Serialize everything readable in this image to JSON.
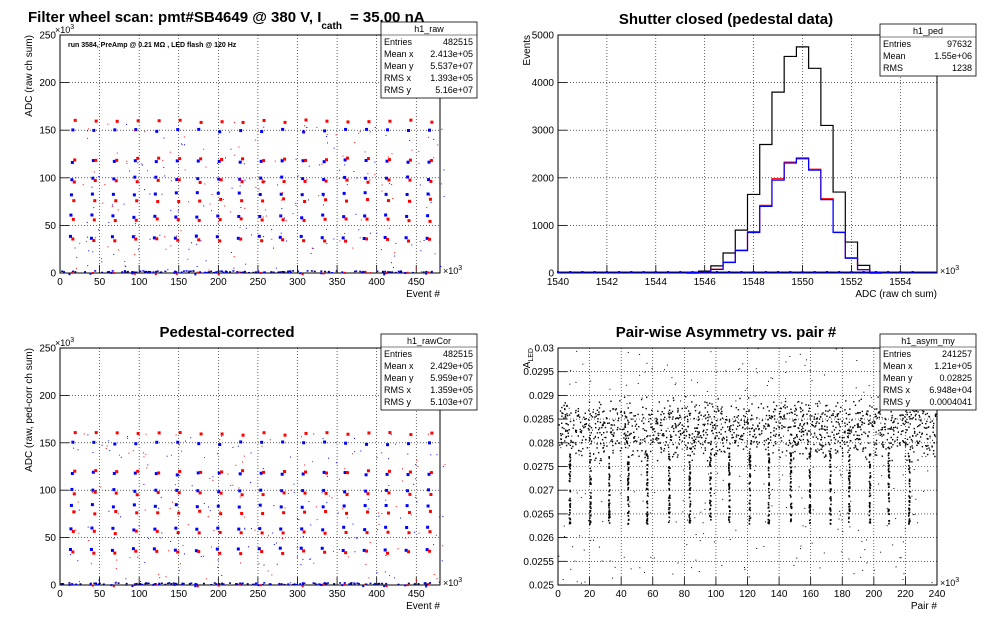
{
  "chart_data": [
    {
      "type": "scatter",
      "title": "Filter wheel scan: pmt#SB4649 @   380 V, I",
      "title_sub": "cath",
      "title_tail": "= 35.00 nA",
      "annotation": "run 3584, PreAmp @ 0.21 MΩ , LED flash @  120 Hz",
      "xlabel": "Event #",
      "ylabel": "ADC (raw ch sum)",
      "x_exponent": "×10",
      "x_exponent_power": "3",
      "y_exponent": "×10",
      "y_exponent_power": "3",
      "xlim": [
        0,
        480
      ],
      "ylim": [
        0,
        250
      ],
      "xticks": [
        "0",
        "50",
        "100",
        "150",
        "200",
        "250",
        "300",
        "350",
        "400",
        "450"
      ],
      "yticks": [
        "0",
        "50",
        "100",
        "150",
        "200",
        "250"
      ],
      "series": [
        {
          "name": "",
          "color": "#0000ff",
          "values": [
            0,
            38,
            60,
            84,
            100,
            118,
            150
          ]
        },
        {
          "name": "",
          "color": "#ff0000",
          "values": [
            0,
            35,
            56,
            77,
            97,
            120,
            160
          ]
        }
      ],
      "stats": {
        "name": "h1_raw",
        "rows": [
          [
            "Entries",
            "482515"
          ],
          [
            "Mean x",
            "2.413e+05"
          ],
          [
            "Mean y",
            "5.537e+07"
          ],
          [
            "RMS x",
            "1.393e+05"
          ],
          [
            "RMS y",
            "5.16e+07"
          ]
        ]
      },
      "grid": true
    },
    {
      "type": "line",
      "title": "Shutter closed (pedestal data)",
      "xlabel": "ADC (raw ch sum)",
      "ylabel": "Events",
      "x_exponent": "×10",
      "x_exponent_power": "3",
      "xlim": [
        1540,
        1555.5
      ],
      "ylim": [
        0,
        5000
      ],
      "xticks": [
        "1540",
        "1542",
        "1544",
        "1546",
        "1548",
        "1550",
        "1552",
        "1554"
      ],
      "yticks": [
        "0",
        "1000",
        "2000",
        "3000",
        "4000",
        "5000"
      ],
      "x": [
        1545.5,
        1546,
        1546.5,
        1547,
        1547.5,
        1548,
        1548.5,
        1549,
        1549.5,
        1550,
        1550.5,
        1551,
        1551.5,
        1552,
        1552.5,
        1553
      ],
      "series": [
        {
          "name": "",
          "color": "#000000",
          "values": [
            0,
            40,
            150,
            420,
            900,
            1650,
            2700,
            3800,
            4550,
            4750,
            4300,
            3100,
            1700,
            650,
            160,
            0
          ]
        },
        {
          "name": "",
          "color": "#ff0000",
          "values": [
            0,
            20,
            80,
            230,
            480,
            870,
            1420,
            1980,
            2330,
            2420,
            2180,
            1560,
            860,
            320,
            70,
            0
          ]
        },
        {
          "name": "",
          "color": "#0000ff",
          "values": [
            0,
            20,
            75,
            220,
            470,
            850,
            1400,
            1950,
            2310,
            2400,
            2160,
            1540,
            850,
            310,
            70,
            0
          ]
        }
      ],
      "stats": {
        "name": "h1_ped",
        "rows": [
          [
            "Entries",
            "97632"
          ],
          [
            "Mean",
            "1.55e+06"
          ],
          [
            "RMS",
            "1238"
          ]
        ]
      },
      "grid": true
    },
    {
      "type": "scatter",
      "title": "Pedestal-corrected",
      "xlabel": "Event #",
      "ylabel": "ADC (raw, ped-corr ch sum)",
      "x_exponent": "×10",
      "x_exponent_power": "3",
      "y_exponent": "×10",
      "y_exponent_power": "3",
      "xlim": [
        0,
        480
      ],
      "ylim": [
        0,
        250
      ],
      "xticks": [
        "0",
        "50",
        "100",
        "150",
        "200",
        "250",
        "300",
        "350",
        "400",
        "450"
      ],
      "yticks": [
        "0",
        "50",
        "100",
        "150",
        "200",
        "250"
      ],
      "series": [
        {
          "name": "",
          "color": "#0000ff",
          "values": [
            0,
            38,
            60,
            84,
            100,
            118,
            150
          ]
        },
        {
          "name": "",
          "color": "#ff0000",
          "values": [
            0,
            35,
            56,
            77,
            97,
            120,
            160
          ]
        }
      ],
      "stats": {
        "name": "h1_rawCor",
        "rows": [
          [
            "Entries",
            "482515"
          ],
          [
            "Mean x",
            "2.429e+05"
          ],
          [
            "Mean y",
            "5.959e+07"
          ],
          [
            "RMS x",
            "1.359e+05"
          ],
          [
            "RMS y",
            "5.103e+07"
          ]
        ]
      },
      "grid": true
    },
    {
      "type": "scatter",
      "title": "Pair-wise Asymmetry vs. pair #",
      "xlabel": "Pair #",
      "ylabel": "A",
      "ylabel_sub": "LED",
      "x_exponent": "×10",
      "x_exponent_power": "3",
      "xlim": [
        0,
        240
      ],
      "ylim": [
        0.025,
        0.03
      ],
      "xticks": [
        "0",
        "20",
        "40",
        "60",
        "80",
        "100",
        "120",
        "140",
        "160",
        "180",
        "200",
        "220",
        "240"
      ],
      "yticks": [
        "0.025",
        "0.0255",
        "0.026",
        "0.0265",
        "0.027",
        "0.0275",
        "0.028",
        "0.0285",
        "0.029",
        "0.0295",
        "0.03"
      ],
      "band": [
        0.0278,
        0.0288
      ],
      "dip_x": [
        7,
        20,
        32,
        44,
        56,
        70,
        83,
        96,
        108,
        121,
        133,
        147,
        159,
        172,
        184,
        197,
        209,
        222
      ],
      "dip_y": 0.0263,
      "series": [
        {
          "name": "",
          "color": "#000000"
        }
      ],
      "stats": {
        "name": "h1_asym_my",
        "rows": [
          [
            "Entries",
            "241257"
          ],
          [
            "Mean x",
            "1.21e+05"
          ],
          [
            "Mean y",
            "0.02825"
          ],
          [
            "RMS x",
            "6.948e+04"
          ],
          [
            "RMS y",
            "0.0004041"
          ]
        ]
      },
      "grid": true
    }
  ]
}
